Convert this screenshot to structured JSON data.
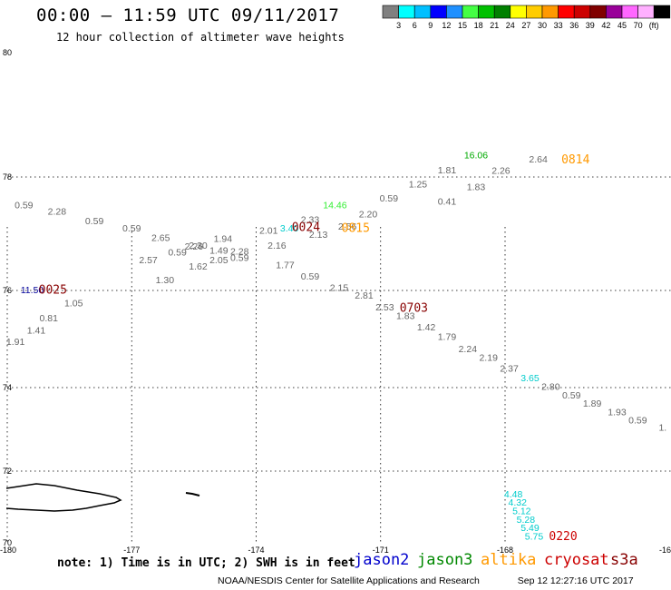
{
  "title": "00:00 – 11:59 UTC 09/11/2017",
  "subtitle": "12 hour collection of altimeter wave heights",
  "color_scale": {
    "colors": [
      "#808080",
      "#00ffff",
      "#00bfff",
      "#0000ff",
      "#1f90ff",
      "#44ff44",
      "#00c000",
      "#008000",
      "#ffff00",
      "#ffcc00",
      "#ff9900",
      "#ff0000",
      "#cc0000",
      "#800000",
      "#990099",
      "#ff66ff",
      "#ffb0ff",
      "#000000"
    ],
    "labels": [
      "3",
      "6",
      "9",
      "12",
      "15",
      "18",
      "21",
      "24",
      "27",
      "30",
      "33",
      "36",
      "39",
      "42",
      "45",
      "70",
      "(ft)"
    ]
  },
  "map": {
    "lat_labels": [
      "80",
      "78",
      "76",
      "74",
      "72",
      "70"
    ],
    "lon_labels": [
      "-180",
      "-177",
      "-174",
      "-171",
      "-168",
      "-16"
    ]
  },
  "wave_heights": [
    {
      "v": "0.59",
      "c": "#666666",
      "lon": -179.6,
      "lat": 77.45
    },
    {
      "v": "2.28",
      "c": "#666666",
      "lon": -178.8,
      "lat": 77.34
    },
    {
      "v": "0.59",
      "c": "#666666",
      "lon": -177.9,
      "lat": 77.17
    },
    {
      "v": "0.59",
      "c": "#666666",
      "lon": -177.0,
      "lat": 77.04
    },
    {
      "v": "2.65",
      "c": "#666666",
      "lon": -176.3,
      "lat": 76.87
    },
    {
      "v": "2.57",
      "c": "#666666",
      "lon": -176.6,
      "lat": 76.48
    },
    {
      "v": "0.59",
      "c": "#666666",
      "lon": -175.9,
      "lat": 76.62
    },
    {
      "v": "2.26",
      "c": "#666666",
      "lon": -175.5,
      "lat": 76.72
    },
    {
      "v": "2.30",
      "c": "#666666",
      "lon": -175.4,
      "lat": 76.74
    },
    {
      "v": "1.94",
      "c": "#666666",
      "lon": -174.8,
      "lat": 76.86
    },
    {
      "v": "1.49",
      "c": "#666666",
      "lon": -174.9,
      "lat": 76.65
    },
    {
      "v": "2.05",
      "c": "#666666",
      "lon": -174.9,
      "lat": 76.48
    },
    {
      "v": "2.28",
      "c": "#666666",
      "lon": -174.4,
      "lat": 76.63
    },
    {
      "v": "0.59",
      "c": "#666666",
      "lon": -174.4,
      "lat": 76.52
    },
    {
      "v": "1.62",
      "c": "#666666",
      "lon": -175.4,
      "lat": 76.37
    },
    {
      "v": "1.30",
      "c": "#666666",
      "lon": -176.2,
      "lat": 76.13
    },
    {
      "v": "2.01",
      "c": "#666666",
      "lon": -173.7,
      "lat": 77.0
    },
    {
      "v": "3.40",
      "c": "#00cccc",
      "lon": -173.2,
      "lat": 77.04
    },
    {
      "v": "2.16",
      "c": "#666666",
      "lon": -173.5,
      "lat": 76.74
    },
    {
      "v": "1.77",
      "c": "#666666",
      "lon": -173.3,
      "lat": 76.39
    },
    {
      "v": "2.33",
      "c": "#666666",
      "lon": -172.7,
      "lat": 77.19
    },
    {
      "v": "2.13",
      "c": "#666666",
      "lon": -172.5,
      "lat": 76.93
    },
    {
      "v": "0.59",
      "c": "#666666",
      "lon": -172.7,
      "lat": 76.19
    },
    {
      "v": "2.15",
      "c": "#666666",
      "lon": -172.0,
      "lat": 75.99
    },
    {
      "v": "14.46",
      "c": "#33ee33",
      "lon": -172.1,
      "lat": 77.45
    },
    {
      "v": "2.56",
      "c": "#666666",
      "lon": -171.8,
      "lat": 77.07
    },
    {
      "v": "2.20",
      "c": "#666666",
      "lon": -171.3,
      "lat": 77.29
    },
    {
      "v": "0.59",
      "c": "#666666",
      "lon": -170.8,
      "lat": 77.57
    },
    {
      "v": "1.25",
      "c": "#666666",
      "lon": -170.1,
      "lat": 77.82
    },
    {
      "v": "1.81",
      "c": "#666666",
      "lon": -169.4,
      "lat": 78.06
    },
    {
      "v": "0.41",
      "c": "#666666",
      "lon": -169.4,
      "lat": 77.51
    },
    {
      "v": "16.06",
      "c": "#00aa00",
      "lon": -168.7,
      "lat": 78.3
    },
    {
      "v": "1.83",
      "c": "#666666",
      "lon": -168.7,
      "lat": 77.77
    },
    {
      "v": "2.26",
      "c": "#666666",
      "lon": -168.1,
      "lat": 78.05
    },
    {
      "v": "2.64",
      "c": "#666666",
      "lon": -167.2,
      "lat": 78.23
    },
    {
      "v": "2.81",
      "c": "#666666",
      "lon": -171.4,
      "lat": 75.83
    },
    {
      "v": "2.53",
      "c": "#666666",
      "lon": -170.9,
      "lat": 75.59
    },
    {
      "v": "1.83",
      "c": "#666666",
      "lon": -170.4,
      "lat": 75.41
    },
    {
      "v": "1.42",
      "c": "#666666",
      "lon": -169.9,
      "lat": 75.18
    },
    {
      "v": "1.79",
      "c": "#666666",
      "lon": -169.4,
      "lat": 74.98
    },
    {
      "v": "2.24",
      "c": "#666666",
      "lon": -168.9,
      "lat": 74.73
    },
    {
      "v": "2.19",
      "c": "#666666",
      "lon": -168.4,
      "lat": 74.55
    },
    {
      "v": "2.37",
      "c": "#666666",
      "lon": -167.9,
      "lat": 74.33
    },
    {
      "v": "3.65",
      "c": "#00cccc",
      "lon": -167.4,
      "lat": 74.13
    },
    {
      "v": "2.80",
      "c": "#666666",
      "lon": -166.9,
      "lat": 73.95
    },
    {
      "v": "0.59",
      "c": "#666666",
      "lon": -166.4,
      "lat": 73.74
    },
    {
      "v": "1.89",
      "c": "#666666",
      "lon": -165.9,
      "lat": 73.54
    },
    {
      "v": "1.93",
      "c": "#666666",
      "lon": -165.3,
      "lat": 73.34
    },
    {
      "v": "0.59",
      "c": "#666666",
      "lon": -164.8,
      "lat": 73.14
    },
    {
      "v": "1.",
      "c": "#666666",
      "lon": -164.2,
      "lat": 72.97
    },
    {
      "v": "11.50",
      "c": "#000099",
      "lon": -179.4,
      "lat": 75.94
    },
    {
      "v": "1.05",
      "c": "#666666",
      "lon": -178.4,
      "lat": 75.67
    },
    {
      "v": "0.81",
      "c": "#666666",
      "lon": -179.0,
      "lat": 75.36
    },
    {
      "v": "1.41",
      "c": "#666666",
      "lon": -179.3,
      "lat": 75.11
    },
    {
      "v": "1.91",
      "c": "#666666",
      "lon": -179.8,
      "lat": 74.88
    },
    {
      "v": "4.48",
      "c": "#00cccc",
      "lon": -167.8,
      "lat": 71.26
    },
    {
      "v": "4.32",
      "c": "#00cccc",
      "lon": -167.7,
      "lat": 71.04
    },
    {
      "v": "5.12",
      "c": "#00cccc",
      "lon": -167.6,
      "lat": 70.8
    },
    {
      "v": "5.28",
      "c": "#00cccc",
      "lon": -167.5,
      "lat": 70.56
    },
    {
      "v": "5.49",
      "c": "#00cccc",
      "lon": -167.4,
      "lat": 70.33
    },
    {
      "v": "5.75",
      "c": "#00cccc",
      "lon": -167.3,
      "lat": 70.09
    }
  ],
  "pass_times": [
    {
      "t": "0024",
      "c": "#880000",
      "lon": -172.8,
      "lat": 77.05
    },
    {
      "t": "0815",
      "c": "#ff9900",
      "lon": -171.6,
      "lat": 77.03
    },
    {
      "t": "0814",
      "c": "#ff9900",
      "lon": -166.3,
      "lat": 78.22
    },
    {
      "t": "0025",
      "c": "#880000",
      "lon": -178.9,
      "lat": 75.93
    },
    {
      "t": "0703",
      "c": "#880000",
      "lon": -170.2,
      "lat": 75.56
    },
    {
      "t": "0220",
      "c": "#cc0000",
      "lon": -166.6,
      "lat": 70.07
    }
  ],
  "note": "note: 1) Time is in UTC; 2) SWH is in feet",
  "satellites": [
    {
      "name": "jason2",
      "color": "#0000cc"
    },
    {
      "name": "jason3",
      "color": "#008800"
    },
    {
      "name": "altika",
      "color": "#ff9900"
    },
    {
      "name": "cryosat",
      "color": "#cc0000"
    },
    {
      "name": "s3a",
      "color": "#880000"
    }
  ],
  "credit": "NOAA/NESDIS Center for Satellite Applications and Research",
  "timestamp": "Sep 12 12:27:16 UTC 2017"
}
